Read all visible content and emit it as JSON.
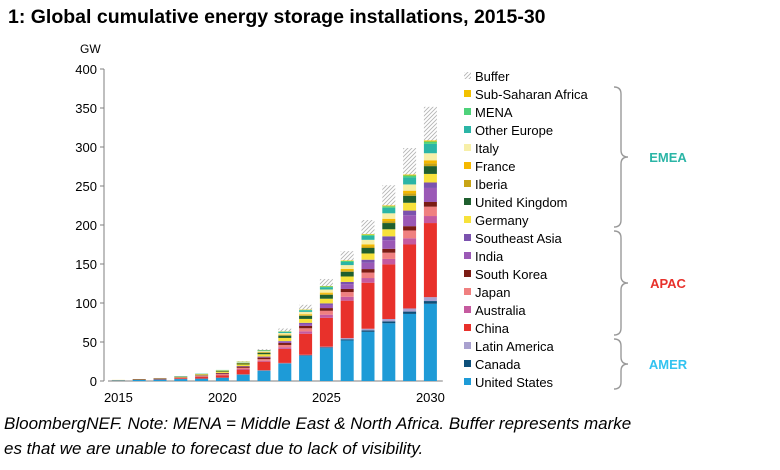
{
  "title": "1: Global cumulative energy storage installations, 2015-30",
  "source_note": {
    "line1": " BloombergNEF. Note: MENA = Middle East & North Africa. Buffer represents marke",
    "line2": "es that we are unable to forecast due to lack of visibility."
  },
  "chart_data": {
    "type": "bar",
    "stacked": true,
    "ylabel": "GW",
    "ylim": [
      0,
      400
    ],
    "y_ticks": [
      0,
      50,
      100,
      150,
      200,
      250,
      300,
      350,
      400
    ],
    "x_tick_labels": [
      "2015",
      "2020",
      "2025",
      "2030"
    ],
    "categories": [
      "2015",
      "2016",
      "2017",
      "2018",
      "2019",
      "2020",
      "2021",
      "2022",
      "2023",
      "2024",
      "2025",
      "2026",
      "2027",
      "2028",
      "2029",
      "2030"
    ],
    "grid": false,
    "legend_position": "right",
    "series": [
      {
        "name": "United States",
        "color": "#1E9BD7",
        "values": [
          1,
          1.5,
          2,
          2.5,
          3,
          4,
          8,
          13,
          22,
          32,
          42,
          52,
          63,
          74,
          86,
          99
        ]
      },
      {
        "name": "Canada",
        "color": "#0D4F7A",
        "values": [
          0,
          0,
          0,
          0,
          0.1,
          0.2,
          0.3,
          0.4,
          0.6,
          0.8,
          1,
          1.5,
          2,
          2.5,
          3,
          3.5
        ]
      },
      {
        "name": "Latin America",
        "color": "#A9A1CF",
        "values": [
          0,
          0,
          0,
          0,
          0.1,
          0.2,
          0.3,
          0.4,
          0.6,
          0.8,
          1,
          1.5,
          2,
          3,
          4,
          5
        ]
      },
      {
        "name": "China",
        "color": "#E8312B",
        "values": [
          0.2,
          0.4,
          0.6,
          1,
          2,
          3,
          6,
          11,
          18,
          27,
          37,
          48,
          59,
          70,
          82,
          95
        ]
      },
      {
        "name": "Australia",
        "color": "#C55A9F",
        "values": [
          0,
          0,
          0,
          0.1,
          0.2,
          0.4,
          0.8,
          1.2,
          2,
          3,
          4,
          5,
          6,
          7,
          8,
          9
        ]
      },
      {
        "name": "Japan",
        "color": "#F08080",
        "values": [
          0.1,
          0.2,
          0.3,
          0.5,
          0.7,
          1,
          1.5,
          2,
          3,
          4,
          5,
          6,
          7,
          8,
          10,
          12
        ]
      },
      {
        "name": "South Korea",
        "color": "#7B1C14",
        "values": [
          0,
          0.1,
          0.3,
          0.6,
          0.9,
          1.2,
          1.6,
          2,
          2.5,
          3,
          3.5,
          4,
          4.5,
          5,
          5.5,
          6
        ]
      },
      {
        "name": "India",
        "color": "#9B59B6",
        "values": [
          0,
          0,
          0,
          0,
          0.1,
          0.2,
          0.4,
          0.8,
          1.5,
          2.5,
          4,
          6,
          8,
          11,
          14,
          18
        ]
      },
      {
        "name": "Southeast Asia",
        "color": "#7B52AE",
        "values": [
          0,
          0,
          0,
          0,
          0.1,
          0.2,
          0.3,
          0.5,
          1,
          1.5,
          2,
          3,
          4,
          5,
          6,
          7
        ]
      },
      {
        "name": "Germany",
        "color": "#F7E23B",
        "values": [
          0.1,
          0.2,
          0.4,
          0.7,
          1,
          1.5,
          2,
          3,
          4,
          5,
          6,
          7,
          8,
          9,
          10,
          11
        ]
      },
      {
        "name": "United Kingdom",
        "color": "#1F5F2E",
        "values": [
          0,
          0.1,
          0.2,
          0.4,
          0.6,
          1,
          1.5,
          2,
          3,
          4,
          5,
          6,
          7,
          8,
          9,
          10
        ]
      },
      {
        "name": "Iberia",
        "color": "#C8A415",
        "values": [
          0,
          0,
          0,
          0,
          0,
          0.1,
          0.2,
          0.3,
          0.5,
          0.8,
          1.2,
          1.6,
          2,
          2.5,
          3,
          3.5
        ]
      },
      {
        "name": "France",
        "color": "#F5B800",
        "values": [
          0,
          0,
          0,
          0,
          0.1,
          0.2,
          0.3,
          0.5,
          0.8,
          1.2,
          1.6,
          2,
          2.5,
          3,
          3.5,
          4
        ]
      },
      {
        "name": "Italy",
        "color": "#F7EFA8",
        "values": [
          0,
          0,
          0.1,
          0.2,
          0.3,
          0.5,
          0.8,
          1.2,
          2,
          3,
          4,
          5,
          6,
          7,
          8,
          9
        ]
      },
      {
        "name": "Other Europe",
        "color": "#2BB5A6",
        "values": [
          0,
          0,
          0,
          0.1,
          0.2,
          0.4,
          0.7,
          1,
          1.5,
          2,
          3,
          4,
          5,
          7,
          9,
          12
        ]
      },
      {
        "name": "MENA",
        "color": "#4ED27A",
        "values": [
          0,
          0,
          0,
          0,
          0,
          0.1,
          0.2,
          0.3,
          0.5,
          0.7,
          1,
          1.3,
          1.6,
          2,
          2.5,
          3
        ]
      },
      {
        "name": "Sub-Saharan Africa",
        "color": "#F2C100",
        "values": [
          0,
          0,
          0,
          0,
          0,
          0,
          0.1,
          0.2,
          0.3,
          0.4,
          0.5,
          0.6,
          0.8,
          1,
          1.2,
          1.5
        ]
      },
      {
        "name": "Buffer",
        "color": "hatch",
        "values": [
          0,
          0,
          0,
          0,
          0,
          0,
          0.3,
          1.2,
          3.5,
          6,
          9,
          12,
          18,
          26,
          34,
          43
        ]
      }
    ],
    "groups": [
      {
        "name": "EMEA",
        "color": "#2BB5A6",
        "members": [
          "Sub-Saharan Africa",
          "MENA",
          "Other Europe",
          "Italy",
          "France",
          "Iberia",
          "United Kingdom",
          "Germany"
        ]
      },
      {
        "name": "APAC",
        "color": "#E8312B",
        "members": [
          "Southeast Asia",
          "India",
          "South Korea",
          "Japan",
          "Australia",
          "China"
        ]
      },
      {
        "name": "AMER",
        "color": "#33C3F0",
        "members": [
          "Latin America",
          "Canada",
          "United States"
        ]
      }
    ]
  }
}
